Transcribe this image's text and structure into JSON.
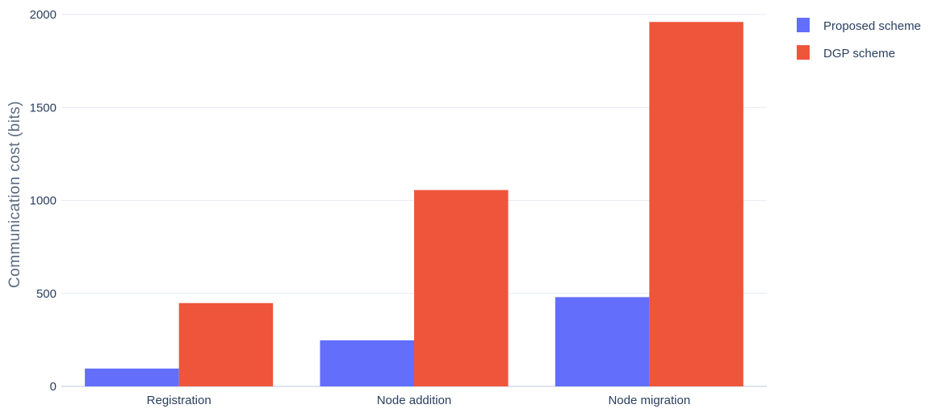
{
  "chart_data": {
    "type": "bar",
    "title": "",
    "xlabel": "",
    "ylabel": "Communication cost (bits)",
    "categories": [
      "Registration",
      "Node addition",
      "Node migration"
    ],
    "series": [
      {
        "name": "Proposed scheme",
        "color": "#636efa",
        "values": [
          96,
          248,
          480
        ]
      },
      {
        "name": "DGP scheme",
        "color": "#ef553b",
        "values": [
          448,
          1056,
          1960
        ]
      }
    ],
    "ylim": [
      0,
      2000
    ],
    "yticks": [
      0,
      500,
      1000,
      1500,
      2000
    ],
    "ytick_labels": [
      "0",
      "500",
      "1000",
      "1500",
      "2000"
    ],
    "grid": true,
    "legend": "top-right"
  }
}
